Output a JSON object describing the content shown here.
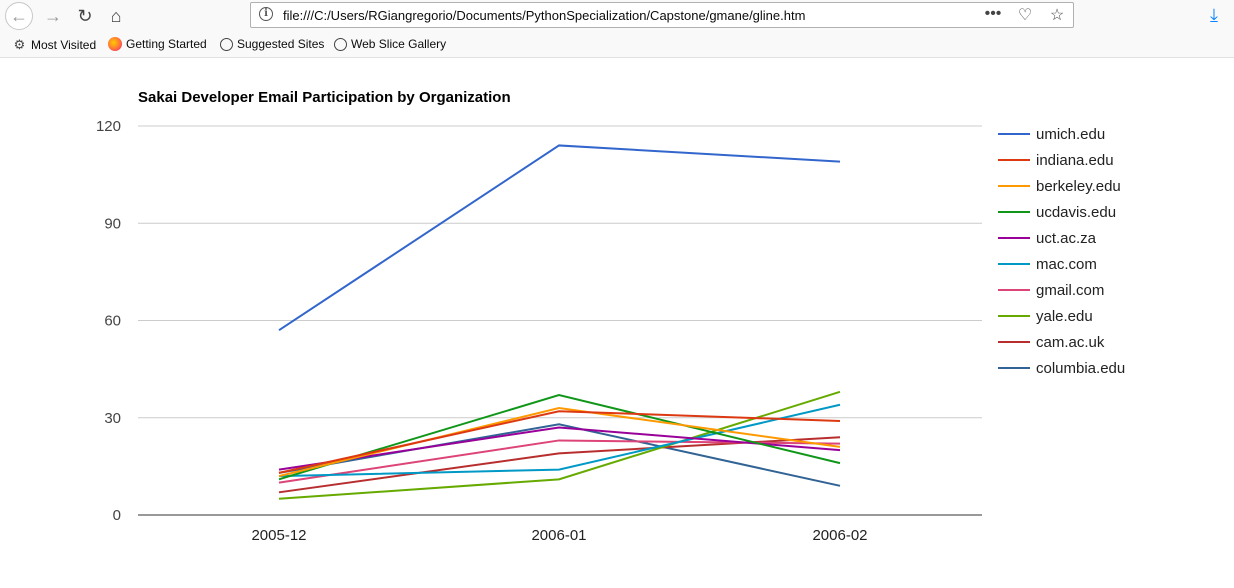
{
  "browser": {
    "url": "file:///C:/Users/RGiangregorio/Documents/PythonSpecialization/Capstone/gmane/gline.htm",
    "bookmarks": [
      {
        "label": "Most Visited",
        "icon": "gear-icon"
      },
      {
        "label": "Getting Started",
        "icon": "firefox-icon"
      },
      {
        "label": "Suggested Sites",
        "icon": "globe-icon"
      },
      {
        "label": "Web Slice Gallery",
        "icon": "globe-icon"
      }
    ]
  },
  "chart_data": {
    "type": "line",
    "title": "Sakai Developer Email Participation by Organization",
    "xlabel": "",
    "ylabel": "",
    "categories": [
      "2005-12",
      "2006-01",
      "2006-02"
    ],
    "ylim": [
      0,
      120
    ],
    "yticks": [
      0,
      30,
      60,
      90,
      120
    ],
    "grid": true,
    "legend": "right",
    "series": [
      {
        "name": "umich.edu",
        "color": "#3366cc",
        "values": [
          57,
          114,
          109
        ]
      },
      {
        "name": "indiana.edu",
        "color": "#dc3912",
        "values": [
          13,
          32,
          29
        ]
      },
      {
        "name": "berkeley.edu",
        "color": "#ff9900",
        "values": [
          12,
          33,
          21
        ]
      },
      {
        "name": "ucdavis.edu",
        "color": "#109618",
        "values": [
          11,
          37,
          16
        ]
      },
      {
        "name": "uct.ac.za",
        "color": "#990099",
        "values": [
          14,
          27,
          20
        ]
      },
      {
        "name": "mac.com",
        "color": "#0099c6",
        "values": [
          12,
          14,
          34
        ]
      },
      {
        "name": "gmail.com",
        "color": "#dd4477",
        "values": [
          10,
          23,
          22
        ]
      },
      {
        "name": "yale.edu",
        "color": "#66aa00",
        "values": [
          5,
          11,
          38
        ]
      },
      {
        "name": "cam.ac.uk",
        "color": "#b82e2e",
        "values": [
          7,
          19,
          24
        ]
      },
      {
        "name": "columbia.edu",
        "color": "#316395",
        "values": [
          13,
          28,
          9
        ]
      }
    ]
  }
}
